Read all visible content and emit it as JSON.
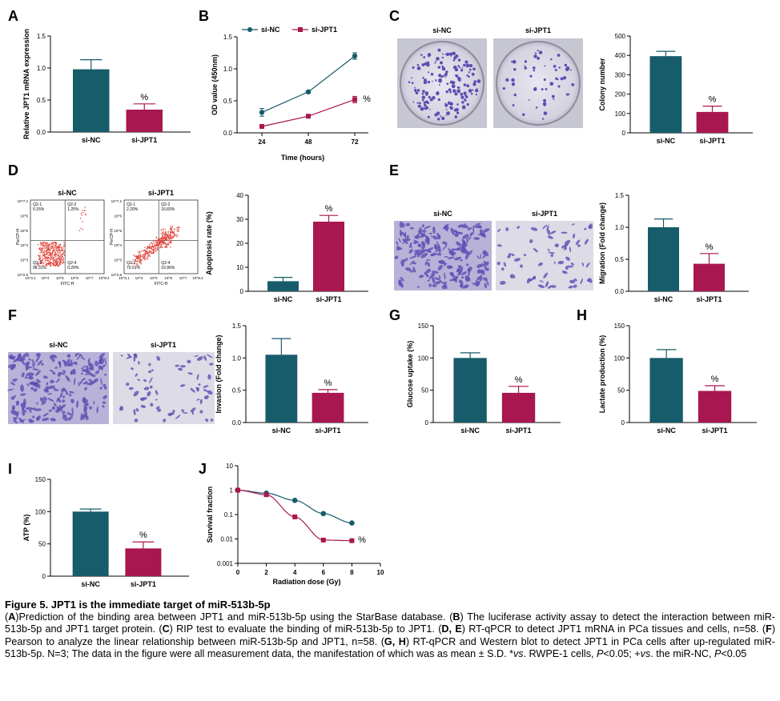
{
  "colors": {
    "si_nc": "#175c6a",
    "si_jpt1": "#a8174f",
    "axis": "#000000",
    "gate": "#555555",
    "dot": "#e0443c",
    "stain": "#5b4fb3"
  },
  "panels": {
    "A": "A",
    "B": "B",
    "C": "C",
    "D": "D",
    "E": "E",
    "F": "F",
    "G": "G",
    "H": "H",
    "I": "I",
    "J": "J"
  },
  "images": {
    "C": {
      "left": "si-NC",
      "right": "si-JPT1"
    },
    "D": {
      "left": "si-NC",
      "right": "si-JPT1",
      "ylabel": "PerCP-H",
      "xlabel": "FITC-H",
      "yticks": [
        "10^7.2",
        "10^6",
        "10^5",
        "10^4",
        "10^3",
        "10^2.8"
      ],
      "xticks": [
        "10^3.1",
        "10^4",
        "10^5",
        "10^6",
        "10^7",
        "10^8.4"
      ],
      "quad_nc": [
        "Q2-1\n0.15%",
        "Q2-2\n1.25%",
        "Q2-3\n98.31%",
        "Q2-4\n0.29%"
      ],
      "quad_jpt1": [
        "Q2-1\n2.20%",
        "Q2-2\n16.83%",
        "Q2-3\n70.01%",
        "Q2-4\n10.96%"
      ]
    },
    "E": {
      "left": "si-NC",
      "right": "si-JPT1"
    },
    "F": {
      "left": "si-NC",
      "right": "si-JPT1"
    }
  },
  "chart_data": [
    {
      "id": "A",
      "type": "bar",
      "categories": [
        "si-NC",
        "si-JPT1"
      ],
      "values": [
        0.98,
        0.35
      ],
      "errors": [
        0.15,
        0.09
      ],
      "ylabel": "Relative JPT1 mRNA expression",
      "ylim": [
        0,
        1.5
      ],
      "yticks": [
        "0.0",
        "0.5",
        "1.0",
        "1.5"
      ],
      "annotation": "%"
    },
    {
      "id": "B",
      "type": "line",
      "x": [
        24,
        48,
        72
      ],
      "xlabel": "Time (hours)",
      "ylabel": "OD value (450nm)",
      "ylim": [
        0,
        1.5
      ],
      "yticks": [
        "0.0",
        "0.5",
        "1.0",
        "1.5"
      ],
      "xticks": [
        "24",
        "48",
        "72"
      ],
      "legend": "top-left",
      "series": [
        {
          "name": "si-NC",
          "values": [
            0.32,
            0.64,
            1.2
          ],
          "errors": [
            0.06,
            0.02,
            0.05
          ]
        },
        {
          "name": "si-JPT1",
          "values": [
            0.1,
            0.26,
            0.52
          ],
          "errors": [
            0.02,
            0.02,
            0.05
          ]
        }
      ],
      "annotation": "%"
    },
    {
      "id": "C",
      "type": "bar",
      "categories": [
        "si-NC",
        "si-JPT1"
      ],
      "values": [
        396,
        108
      ],
      "errors": [
        25,
        30
      ],
      "ylabel": "Colony number",
      "ylim": [
        0,
        500
      ],
      "yticks": [
        "0",
        "100",
        "200",
        "300",
        "400",
        "500"
      ],
      "annotation": "%"
    },
    {
      "id": "D",
      "type": "bar",
      "categories": [
        "si-NC",
        "si-JPT1"
      ],
      "values": [
        4.2,
        29
      ],
      "errors": [
        1.6,
        2.6
      ],
      "ylabel": "Apoptosis rate (%)",
      "ylim": [
        0,
        40
      ],
      "yticks": [
        "0",
        "10",
        "20",
        "30",
        "40"
      ],
      "annotation": "%"
    },
    {
      "id": "E",
      "type": "bar",
      "categories": [
        "si-NC",
        "si-JPT1"
      ],
      "values": [
        1.0,
        0.43
      ],
      "errors": [
        0.13,
        0.16
      ],
      "ylabel": "Migration (Fold change)",
      "ylim": [
        0,
        1.5
      ],
      "yticks": [
        "0.0",
        "0.5",
        "1.0",
        "1.5"
      ],
      "annotation": "%"
    },
    {
      "id": "F",
      "type": "bar",
      "categories": [
        "si-NC",
        "si-JPT1"
      ],
      "values": [
        1.05,
        0.46
      ],
      "errors": [
        0.25,
        0.05
      ],
      "ylabel": "Invasion (Fold change)",
      "ylim": [
        0,
        1.5
      ],
      "yticks": [
        "0.0",
        "0.5",
        "1.0",
        "1.5"
      ],
      "annotation": "%"
    },
    {
      "id": "G",
      "type": "bar",
      "categories": [
        "si-NC",
        "si-JPT1"
      ],
      "values": [
        100,
        46
      ],
      "errors": [
        8,
        10
      ],
      "ylabel": "Glucose uptake (%)",
      "ylim": [
        0,
        150
      ],
      "yticks": [
        "0",
        "50",
        "100",
        "150"
      ],
      "annotation": "%"
    },
    {
      "id": "H",
      "type": "bar",
      "categories": [
        "si-NC",
        "si-JPT1"
      ],
      "values": [
        100,
        49
      ],
      "errors": [
        13,
        8
      ],
      "ylabel": "Lactate production (%)",
      "ylim": [
        0,
        150
      ],
      "yticks": [
        "0",
        "50",
        "100",
        "150"
      ],
      "annotation": "%"
    },
    {
      "id": "I",
      "type": "bar",
      "categories": [
        "si-NC",
        "si-JPT1"
      ],
      "values": [
        100,
        43
      ],
      "errors": [
        4,
        10
      ],
      "ylabel": "ATP (%)",
      "ylim": [
        0,
        150
      ],
      "yticks": [
        "0",
        "50",
        "100",
        "150"
      ],
      "annotation": "%"
    },
    {
      "id": "J",
      "type": "line",
      "x": [
        0,
        2,
        4,
        6,
        8
      ],
      "xlabel": "Radiation dose (Gy)",
      "ylabel": "Survival fraction",
      "xlim": [
        0,
        10
      ],
      "xticks": [
        "0",
        "2",
        "4",
        "6",
        "8",
        "10"
      ],
      "yscale": "log",
      "ylim": [
        0.001,
        10
      ],
      "yticks": [
        "0.001",
        "0.01",
        "0.1",
        "1",
        "10"
      ],
      "series": [
        {
          "name": "si-NC",
          "values": [
            1,
            0.75,
            0.38,
            0.11,
            0.045
          ]
        },
        {
          "name": "si-JPT1",
          "values": [
            1,
            0.65,
            0.08,
            0.009,
            0.0085
          ]
        }
      ],
      "annotation": "%"
    }
  ],
  "caption": {
    "title": "Figure 5. JPT1 is the immediate target of miR-513b-5p",
    "segments": [
      [
        "(",
        ""
      ],
      [
        "A",
        "b"
      ],
      [
        ")Prediction of the binding area between JPT1 and miR-513b-5p using the StarBase database. (",
        ""
      ],
      [
        "B",
        "b"
      ],
      [
        ") The luciferase activity assay to detect the interaction between miR-513b-5p and JPT1 target protein. (",
        ""
      ],
      [
        "C",
        "b"
      ],
      [
        ") RIP test to evaluate the binding of miR-513b-5p to JPT1. (",
        ""
      ],
      [
        "D, E",
        "b"
      ],
      [
        ") RT-qPCR to detect JPT1 mRNA in PCa tissues and cells, n=58. (",
        ""
      ],
      [
        "F",
        "b"
      ],
      [
        ") Pearson to analyze the linear relationship between miR-513b-5p and JPT1, n=58. (",
        ""
      ],
      [
        "G, H",
        "b"
      ],
      [
        ") RT-qPCR and Western blot to detect JPT1 in PCa cells after up-regulated miR-513b-5p. N=3; The data in the figure were all measurement data, the manifestation of which was as mean ± S.D. *",
        ""
      ],
      [
        "vs",
        "i"
      ],
      [
        ". RWPE-1 cells, ",
        ""
      ],
      [
        "P",
        "i"
      ],
      [
        "<0.05; +",
        ""
      ],
      [
        "vs",
        "i"
      ],
      [
        ". the miR-NC, ",
        ""
      ],
      [
        "P",
        "i"
      ],
      [
        "<0.05",
        ""
      ]
    ]
  }
}
